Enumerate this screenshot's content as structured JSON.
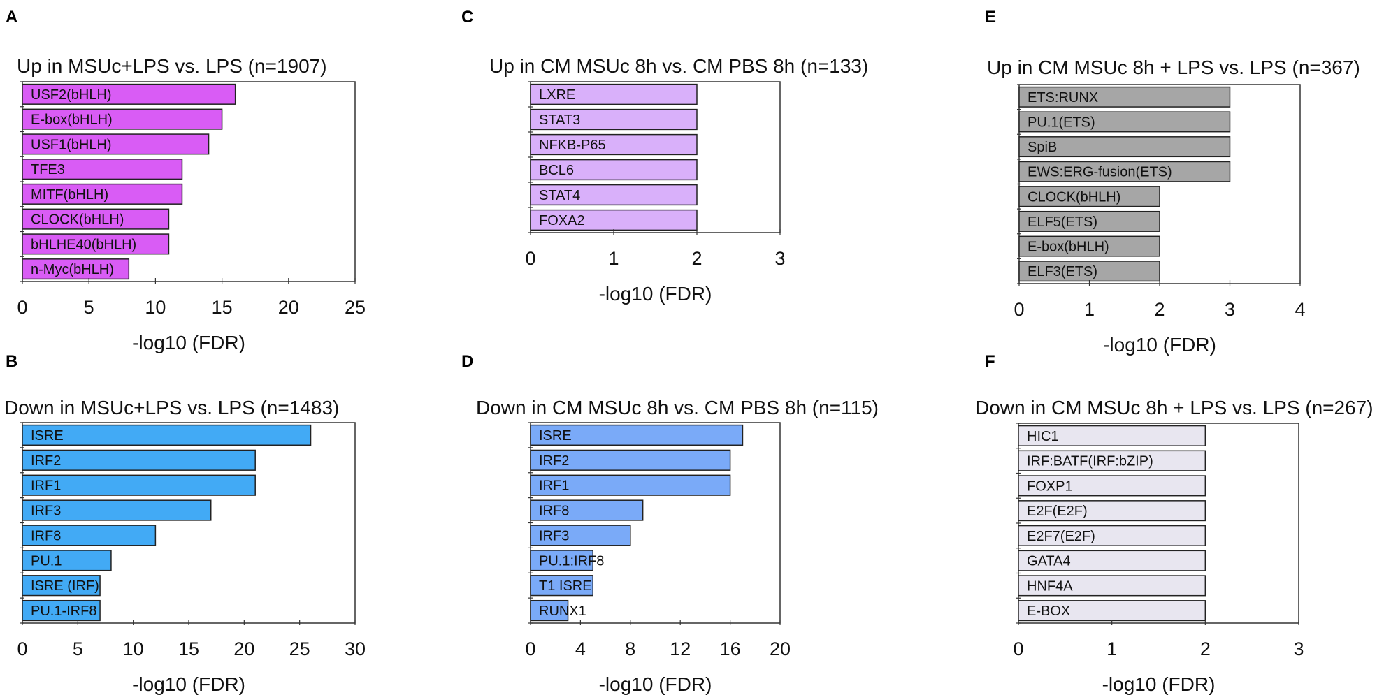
{
  "chart_data": [
    {
      "panel": "A",
      "type": "bar",
      "orientation": "horizontal",
      "title": "Up in MSUc+LPS vs. LPS (n=1907)",
      "xlabel": "-log10 (FDR)",
      "ylabel": "",
      "xlim": [
        0,
        25
      ],
      "xticks": [
        0,
        5,
        10,
        15,
        20,
        25
      ],
      "color": "#d95cf5",
      "categories": [
        "USF2(bHLH)",
        "E-box(bHLH)",
        "USF1(bHLH)",
        "TFE3",
        "MITF(bHLH)",
        "CLOCK(bHLH)",
        "bHLHE40(bHLH)",
        "n-Myc(bHLH)"
      ],
      "values": [
        16,
        15,
        14,
        12,
        12,
        11,
        11,
        8
      ]
    },
    {
      "panel": "B",
      "type": "bar",
      "orientation": "horizontal",
      "title": "Down in MSUc+LPS vs. LPS (n=1483)",
      "xlabel": "-log10 (FDR)",
      "ylabel": "",
      "xlim": [
        0,
        30
      ],
      "xticks": [
        0,
        5,
        10,
        15,
        20,
        25,
        30
      ],
      "color": "#42aaf5",
      "categories": [
        "ISRE",
        "IRF2",
        "IRF1",
        "IRF3",
        "IRF8",
        "PU.1",
        "ISRE (IRF)",
        "PU.1-IRF8"
      ],
      "values": [
        26,
        21,
        21,
        17,
        12,
        8,
        7,
        7
      ]
    },
    {
      "panel": "C",
      "type": "bar",
      "orientation": "horizontal",
      "title": "Up in CM MSUc 8h vs. CM PBS 8h (n=133)",
      "xlabel": "-log10 (FDR)",
      "ylabel": "",
      "xlim": [
        0,
        3
      ],
      "xticks": [
        0,
        1,
        2,
        3
      ],
      "color": "#d9b0fa",
      "categories": [
        "LXRE",
        "STAT3",
        "NFKB-P65",
        "BCL6",
        "STAT4",
        "FOXA2"
      ],
      "values": [
        2,
        2,
        2,
        2,
        2,
        2
      ]
    },
    {
      "panel": "D",
      "type": "bar",
      "orientation": "horizontal",
      "title": "Down in CM MSUc 8h vs. CM PBS 8h (n=115)",
      "xlabel": "-log10 (FDR)",
      "ylabel": "",
      "xlim": [
        0,
        20
      ],
      "xticks": [
        0,
        4,
        8,
        12,
        16,
        20
      ],
      "color": "#7aaaf8",
      "categories": [
        "ISRE",
        "IRF2",
        "IRF1",
        "IRF8",
        "IRF3",
        "PU.1:IRF8",
        "T1 ISRE",
        "RUNX1"
      ],
      "values": [
        17,
        16,
        16,
        9,
        8,
        5,
        5,
        3
      ]
    },
    {
      "panel": "E",
      "type": "bar",
      "orientation": "horizontal",
      "title": "Up in CM MSUc 8h + LPS vs. LPS (n=367)",
      "xlabel": "-log10 (FDR)",
      "ylabel": "",
      "xlim": [
        0,
        4
      ],
      "xticks": [
        0,
        1,
        2,
        3,
        4
      ],
      "color": "#a6a6a6",
      "categories": [
        "ETS:RUNX",
        "PU.1(ETS)",
        "SpiB",
        "EWS:ERG-fusion(ETS)",
        "CLOCK(bHLH)",
        "ELF5(ETS)",
        "E-box(bHLH)",
        "ELF3(ETS)"
      ],
      "values": [
        3,
        3,
        3,
        3,
        2,
        2,
        2,
        2
      ]
    },
    {
      "panel": "F",
      "type": "bar",
      "orientation": "horizontal",
      "title": "Down in CM MSUc 8h + LPS vs. LPS (n=267)",
      "xlabel": "-log10 (FDR)",
      "ylabel": "",
      "xlim": [
        0,
        3
      ],
      "xticks": [
        0,
        1,
        2,
        3
      ],
      "color": "#e8e6f0",
      "categories": [
        "HIC1",
        "IRF:BATF(IRF:bZIP)",
        "FOXP1",
        "E2F(E2F)",
        "E2F7(E2F)",
        "GATA4",
        "HNF4A",
        "E-BOX"
      ],
      "values": [
        2,
        2,
        2,
        2,
        2,
        2,
        2,
        2
      ]
    }
  ]
}
